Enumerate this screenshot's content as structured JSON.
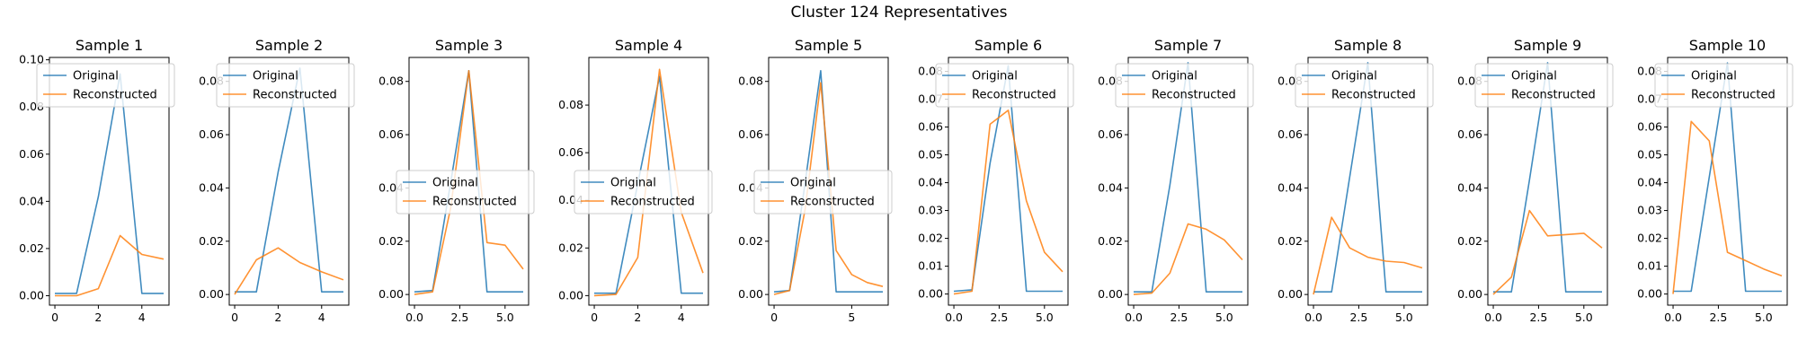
{
  "figure": {
    "title": "Cluster 124 Representatives"
  },
  "colors": {
    "original": "#1f77b4",
    "reconstructed": "#ff7f0e"
  },
  "chart_data": [
    {
      "type": "line",
      "title": "Sample 1",
      "series": [
        {
          "name": "Original",
          "x": [
            0,
            1,
            2,
            3,
            4,
            5
          ],
          "values": [
            0.001,
            0.001,
            0.042,
            0.094,
            0.001,
            0.001
          ]
        },
        {
          "name": "Reconstructed",
          "x": [
            0,
            1,
            2,
            3,
            4,
            5
          ],
          "values": [
            0.0,
            0.0,
            0.003,
            0.0255,
            0.0175,
            0.0155
          ]
        }
      ],
      "xlim": [
        -0.25,
        5.25
      ],
      "ylim": [
        -0.004,
        0.101
      ],
      "xticks": [
        0,
        2,
        4
      ],
      "xtick_labels": [
        "0",
        "2",
        "4"
      ],
      "yticks": [
        0,
        0.02,
        0.04,
        0.06,
        0.08,
        0.1
      ],
      "ytick_labels": [
        "0.00",
        "0.02",
        "0.04",
        "0.06",
        "0.08",
        "0.10"
      ],
      "legend": "upper-left"
    },
    {
      "type": "line",
      "title": "Sample 2",
      "series": [
        {
          "name": "Original",
          "x": [
            0,
            1,
            2,
            3,
            4,
            5
          ],
          "values": [
            0.001,
            0.001,
            0.046,
            0.085,
            0.001,
            0.001
          ]
        },
        {
          "name": "Reconstructed",
          "x": [
            0,
            1,
            2,
            3,
            4,
            5
          ],
          "values": [
            0.0,
            0.013,
            0.0175,
            0.012,
            0.0085,
            0.0055
          ]
        }
      ],
      "xlim": [
        -0.25,
        5.25
      ],
      "ylim": [
        -0.004,
        0.089
      ],
      "xticks": [
        0,
        2,
        4
      ],
      "xtick_labels": [
        "0",
        "2",
        "4"
      ],
      "yticks": [
        0,
        0.02,
        0.04,
        0.06,
        0.08
      ],
      "ytick_labels": [
        "0.00",
        "0.02",
        "0.04",
        "0.06",
        "0.08"
      ],
      "legend": "upper-left"
    },
    {
      "type": "line",
      "title": "Sample 3",
      "series": [
        {
          "name": "Original",
          "x": [
            0,
            1,
            2,
            3,
            4,
            5,
            6
          ],
          "values": [
            0.001,
            0.0015,
            0.042,
            0.084,
            0.001,
            0.001,
            0.001
          ]
        },
        {
          "name": "Reconstructed",
          "x": [
            0,
            1,
            2,
            3,
            4,
            5,
            6
          ],
          "values": [
            0.0,
            0.001,
            0.0325,
            0.084,
            0.0195,
            0.0185,
            0.0095
          ]
        }
      ],
      "xlim": [
        -0.3,
        6.3
      ],
      "ylim": [
        -0.004,
        0.089
      ],
      "xticks": [
        0,
        2.5,
        5
      ],
      "xtick_labels": [
        "0.0",
        "2.5",
        "5.0"
      ],
      "yticks": [
        0,
        0.02,
        0.04,
        0.06,
        0.08
      ],
      "ytick_labels": [
        "0.00",
        "0.02",
        "0.04",
        "0.06",
        "0.08"
      ],
      "legend": "center"
    },
    {
      "type": "line",
      "title": "Sample 4",
      "series": [
        {
          "name": "Original",
          "x": [
            0,
            1,
            2,
            3,
            4,
            5
          ],
          "values": [
            0.001,
            0.001,
            0.047,
            0.092,
            0.001,
            0.001
          ]
        },
        {
          "name": "Reconstructed",
          "x": [
            0,
            1,
            2,
            3,
            4,
            5
          ],
          "values": [
            0.0,
            0.0005,
            0.016,
            0.095,
            0.035,
            0.0095
          ]
        }
      ],
      "xlim": [
        -0.25,
        5.25
      ],
      "ylim": [
        -0.004,
        0.1
      ],
      "xticks": [
        0,
        2,
        4
      ],
      "xtick_labels": [
        "0",
        "2",
        "4"
      ],
      "yticks": [
        0,
        0.02,
        0.04,
        0.06,
        0.08
      ],
      "ytick_labels": [
        "0.00",
        "0.02",
        "0.04",
        "0.06",
        "0.08"
      ],
      "legend": "center-left"
    },
    {
      "type": "line",
      "title": "Sample 5",
      "series": [
        {
          "name": "Original",
          "x": [
            0,
            1,
            2,
            3,
            4,
            5,
            6,
            7
          ],
          "values": [
            0.001,
            0.0015,
            0.042,
            0.084,
            0.001,
            0.001,
            0.001,
            0.001
          ]
        },
        {
          "name": "Reconstructed",
          "x": [
            0,
            1,
            2,
            3,
            4,
            5,
            6,
            7
          ],
          "values": [
            0.0,
            0.0015,
            0.032,
            0.0795,
            0.0165,
            0.0075,
            0.0045,
            0.003
          ]
        }
      ],
      "xlim": [
        -0.35,
        7.35
      ],
      "ylim": [
        -0.004,
        0.089
      ],
      "xticks": [
        0,
        5
      ],
      "xtick_labels": [
        "0",
        "5"
      ],
      "yticks": [
        0,
        0.02,
        0.04,
        0.06,
        0.08
      ],
      "ytick_labels": [
        "0.00",
        "0.02",
        "0.04",
        "0.06",
        "0.08"
      ],
      "legend": "center-left"
    },
    {
      "type": "line",
      "title": "Sample 6",
      "series": [
        {
          "name": "Original",
          "x": [
            0,
            1,
            2,
            3,
            4,
            5,
            6
          ],
          "values": [
            0.001,
            0.0015,
            0.047,
            0.082,
            0.001,
            0.001,
            0.001
          ]
        },
        {
          "name": "Reconstructed",
          "x": [
            0,
            1,
            2,
            3,
            4,
            5,
            6
          ],
          "values": [
            0.0,
            0.001,
            0.061,
            0.066,
            0.0335,
            0.015,
            0.008
          ]
        }
      ],
      "xlim": [
        -0.3,
        6.3
      ],
      "ylim": [
        -0.004,
        0.085
      ],
      "xticks": [
        0,
        2.5,
        5
      ],
      "xtick_labels": [
        "0.0",
        "2.5",
        "5.0"
      ],
      "yticks": [
        0,
        0.01,
        0.02,
        0.03,
        0.04,
        0.05,
        0.06,
        0.07,
        0.08
      ],
      "ytick_labels": [
        "0.00",
        "0.01",
        "0.02",
        "0.03",
        "0.04",
        "0.05",
        "0.06",
        "0.07",
        "0.08"
      ],
      "legend": "upper-left"
    },
    {
      "type": "line",
      "title": "Sample 7",
      "series": [
        {
          "name": "Original",
          "x": [
            0,
            1,
            2,
            3,
            4,
            5,
            6
          ],
          "values": [
            0.001,
            0.001,
            0.041,
            0.087,
            0.001,
            0.001,
            0.001
          ]
        },
        {
          "name": "Reconstructed",
          "x": [
            0,
            1,
            2,
            3,
            4,
            5,
            6
          ],
          "values": [
            0.0,
            0.0005,
            0.008,
            0.0265,
            0.0245,
            0.0205,
            0.013
          ]
        }
      ],
      "xlim": [
        -0.3,
        6.3
      ],
      "ylim": [
        -0.004,
        0.089
      ],
      "xticks": [
        0,
        2.5,
        5
      ],
      "xtick_labels": [
        "0.0",
        "2.5",
        "5.0"
      ],
      "yticks": [
        0,
        0.02,
        0.04,
        0.06,
        0.08
      ],
      "ytick_labels": [
        "0.00",
        "0.02",
        "0.04",
        "0.06",
        "0.08"
      ],
      "legend": "upper-left"
    },
    {
      "type": "line",
      "title": "Sample 8",
      "series": [
        {
          "name": "Original",
          "x": [
            0,
            1,
            2,
            3,
            4,
            5,
            6
          ],
          "values": [
            0.001,
            0.001,
            0.044,
            0.087,
            0.001,
            0.001,
            0.001
          ]
        },
        {
          "name": "Reconstructed",
          "x": [
            0,
            1,
            2,
            3,
            4,
            5,
            6
          ],
          "values": [
            0.0,
            0.029,
            0.0175,
            0.014,
            0.0125,
            0.012,
            0.01
          ]
        }
      ],
      "xlim": [
        -0.3,
        6.3
      ],
      "ylim": [
        -0.004,
        0.089
      ],
      "xticks": [
        0,
        2.5,
        5
      ],
      "xtick_labels": [
        "0.0",
        "2.5",
        "5.0"
      ],
      "yticks": [
        0,
        0.02,
        0.04,
        0.06,
        0.08
      ],
      "ytick_labels": [
        "0.00",
        "0.02",
        "0.04",
        "0.06",
        "0.08"
      ],
      "legend": "upper-left"
    },
    {
      "type": "line",
      "title": "Sample 9",
      "series": [
        {
          "name": "Original",
          "x": [
            0,
            1,
            2,
            3,
            4,
            5,
            6
          ],
          "values": [
            0.001,
            0.001,
            0.043,
            0.087,
            0.001,
            0.001,
            0.001
          ]
        },
        {
          "name": "Reconstructed",
          "x": [
            0,
            1,
            2,
            3,
            4,
            5,
            6
          ],
          "values": [
            0.0,
            0.0065,
            0.0315,
            0.022,
            0.0225,
            0.023,
            0.0175
          ]
        }
      ],
      "xlim": [
        -0.3,
        6.3
      ],
      "ylim": [
        -0.004,
        0.089
      ],
      "xticks": [
        0,
        2.5,
        5
      ],
      "xtick_labels": [
        "0.0",
        "2.5",
        "5.0"
      ],
      "yticks": [
        0,
        0.02,
        0.04,
        0.06,
        0.08
      ],
      "ytick_labels": [
        "0.00",
        "0.02",
        "0.04",
        "0.06",
        "0.08"
      ],
      "legend": "upper-left"
    },
    {
      "type": "line",
      "title": "Sample 10",
      "series": [
        {
          "name": "Original",
          "x": [
            0,
            1,
            2,
            3,
            4,
            5,
            6
          ],
          "values": [
            0.001,
            0.001,
            0.042,
            0.083,
            0.001,
            0.001,
            0.001
          ]
        },
        {
          "name": "Reconstructed",
          "x": [
            0,
            1,
            2,
            3,
            4,
            5,
            6
          ],
          "values": [
            0.0,
            0.062,
            0.055,
            0.015,
            0.012,
            0.009,
            0.0065
          ]
        }
      ],
      "xlim": [
        -0.3,
        6.3
      ],
      "ylim": [
        -0.004,
        0.085
      ],
      "xticks": [
        0,
        2.5,
        5
      ],
      "xtick_labels": [
        "0.0",
        "2.5",
        "5.0"
      ],
      "yticks": [
        0,
        0.01,
        0.02,
        0.03,
        0.04,
        0.05,
        0.06,
        0.07,
        0.08
      ],
      "ytick_labels": [
        "0.00",
        "0.01",
        "0.02",
        "0.03",
        "0.04",
        "0.05",
        "0.06",
        "0.07",
        "0.08"
      ],
      "legend": "upper-left"
    }
  ]
}
